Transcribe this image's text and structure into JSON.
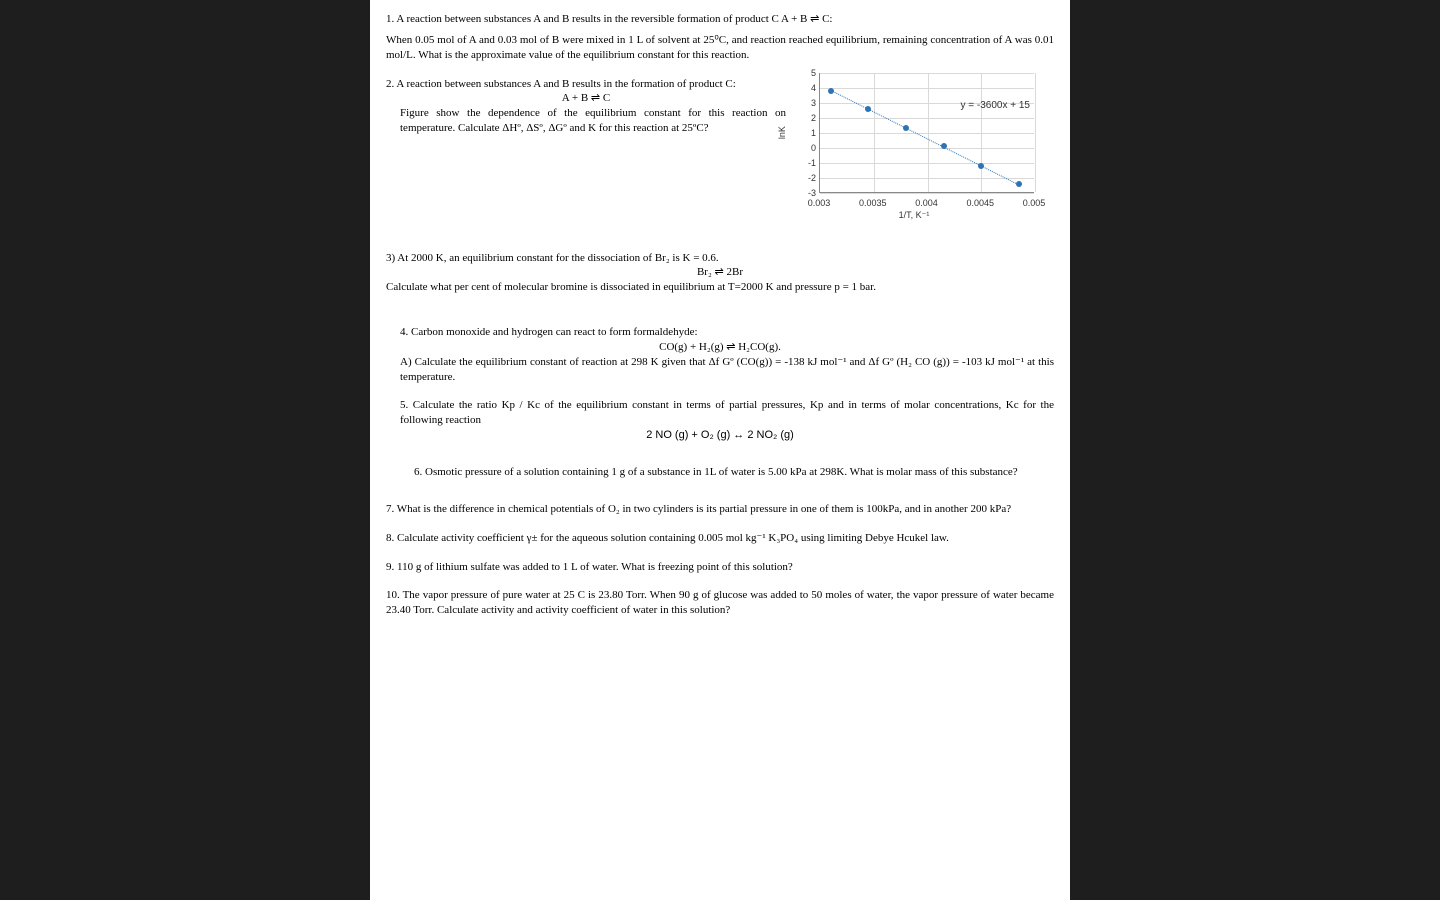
{
  "q1_a": "1. A reaction between substances A and B results in the reversible formation of product C  A  +  B  ⇌  C:",
  "q1_b": "When 0.05 mol of A and 0.03 mol of B were mixed in 1 L of solvent at 25⁰C, and reaction reached equilibrium, remaining concentration of A was 0.01 mol/L.  What is the approximate value of the equilibrium constant for this reaction.",
  "q2_a": "2.  A reaction between substances A and B results in the formation of product  C:",
  "q2_eq": "A  +  B  ⇌   C",
  "q2_b": "Figure show the dependence of the equilibrium constant for this reaction on temperature.  Calculate ΔHº, ΔSº, ΔGº and K for this reaction at 25ºC?",
  "q3_a": "3) At 2000 K, an equilibrium constant for the dissociation of Br₂ is K = 0.6.",
  "q3_eq": "Br₂  ⇌  2Br",
  "q3_b": "Calculate what per cent of molecular bromine is dissociated in equilibrium at T=2000 K and pressure p = 1 bar.",
  "q4_a": "4.  Carbon monoxide and hydrogen can react to form formaldehyde:",
  "q4_eq": "CO(g) + H₂(g)  ⇌  H₂CO(g).",
  "q4_b": "A)  Calculate the equilibrium constant of reaction at 298 K given that Δf Gº (CO(g)) = -138 kJ mol⁻¹ and  Δf Gº (H₂ CO (g)) = -103 kJ mol⁻¹ at this temperature.",
  "q5_a": "5. Calculate the ratio Kp / Kc of the equilibrium constant in terms of partial pressures, Kp and in terms of molar concentrations, Kc for the following reaction",
  "q5_eq": "2 NO (g) + O₂ (g) ↔ 2 NO₂ (g)",
  "q6": "6.   Osmotic pressure of a solution containing 1 g of a substance in 1L of water is 5.00 kPa at 298K. What is molar mass of this substance?",
  "q7": "7. What is the difference in chemical potentials of O₂ in two cylinders is its partial pressure in one of them is 100kPa, and in another 200 kPa?",
  "q8": "8. Calculate activity coefficient γ± for the aqueous solution containing 0.005 mol kg⁻¹ K₃PO₄ using limiting Debye Hcukel law.",
  "q9": "9. 110 g of lithium sulfate was added to 1 L of water. What is freezing point of this solution?",
  "q10": "10.   The vapor pressure of pure water at 25 C is 23.80 Torr.  When 90 g of glucose was added to 50 moles of water, the vapor pressure of water became  23.40 Torr. Calculate activity and activity coefficient of water in this solution?",
  "chart": {
    "type": "scatter-with-trend",
    "y_ticks": [
      -3,
      -2,
      -1,
      0,
      1,
      2,
      3,
      4,
      5
    ],
    "x_ticks": [
      0.003,
      0.0035,
      0.004,
      0.0045,
      0.005
    ],
    "x_tick_labels": [
      "0.003",
      "0.0035",
      "0.004",
      "0.0045",
      "0.005"
    ],
    "ylim": [
      -3,
      5
    ],
    "xlim": [
      0.003,
      0.005
    ],
    "ylabel": "lnK",
    "xlabel": "1/T, K⁻¹",
    "trend_eqn": "y = -3600x + 15",
    "point_color": "#2e74b5",
    "trend_color": "#2e74b5",
    "grid_color": "#d9d9d9",
    "points_x": [
      0.0031,
      0.00345,
      0.0038,
      0.00415,
      0.0045,
      0.00485
    ],
    "points_y": [
      3.8,
      2.6,
      1.3,
      0.1,
      -1.2,
      -2.4
    ]
  }
}
